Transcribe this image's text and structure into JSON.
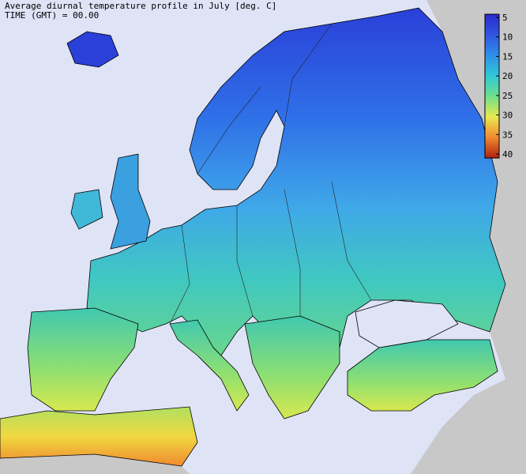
{
  "header": {
    "title": "Average diurnal temperature profile in July [deg. C]",
    "subtitle": "TIME (GMT) = 00.00"
  },
  "colorbar": {
    "range": [
      5,
      40
    ],
    "ticks": [
      5,
      10,
      15,
      20,
      25,
      30,
      35,
      40
    ],
    "colors": [
      "#2a2ad0",
      "#2f55e0",
      "#2e8fe8",
      "#30c8d8",
      "#6ee08a",
      "#e8e850",
      "#f08a30",
      "#b02010"
    ]
  }
}
